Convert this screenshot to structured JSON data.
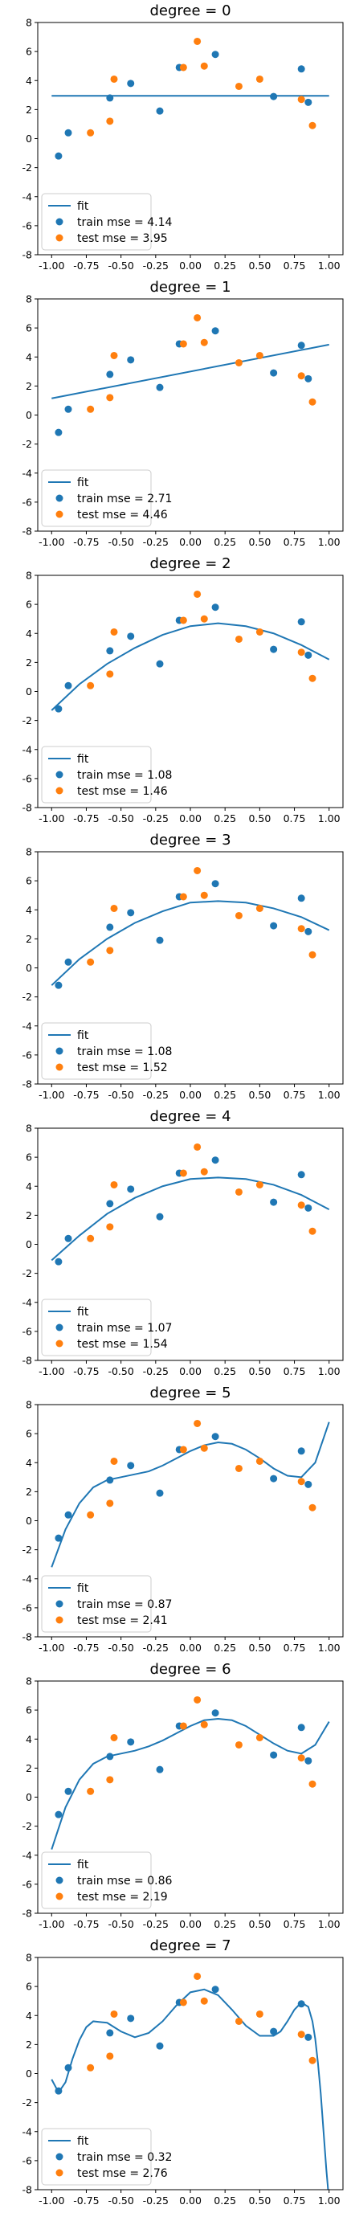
{
  "chart_data": [
    {
      "type": "scatter",
      "title": "degree = 0",
      "xlim": [
        -1.1,
        1.1
      ],
      "ylim": [
        -8,
        8
      ],
      "xticks": [
        "-1.00",
        "-0.75",
        "-0.50",
        "-0.25",
        "0.00",
        "0.25",
        "0.50",
        "0.75",
        "1.00"
      ],
      "yticks": [
        "-8",
        "-6",
        "-4",
        "-2",
        "0",
        "2",
        "4",
        "6",
        "8"
      ],
      "legend": {
        "placement": "lower-left",
        "fit_label": "fit",
        "train_label": "train mse = 4.14",
        "test_label": "test mse = 3.95"
      },
      "fit": {
        "x": [
          -1.0,
          1.0
        ],
        "y": [
          2.95,
          2.95
        ]
      }
    },
    {
      "type": "scatter",
      "title": "degree = 1",
      "xlim": [
        -1.1,
        1.1
      ],
      "ylim": [
        -8,
        8
      ],
      "xticks": [
        "-1.00",
        "-0.75",
        "-0.50",
        "-0.25",
        "0.00",
        "0.25",
        "0.50",
        "0.75",
        "1.00"
      ],
      "yticks": [
        "-8",
        "-6",
        "-4",
        "-2",
        "0",
        "2",
        "4",
        "6",
        "8"
      ],
      "legend": {
        "placement": "lower-left",
        "fit_label": "fit",
        "train_label": "train mse = 2.71",
        "test_label": "test mse = 4.46"
      },
      "fit": {
        "x": [
          -1.0,
          1.0
        ],
        "y": [
          1.15,
          4.85
        ]
      }
    },
    {
      "type": "scatter",
      "title": "degree = 2",
      "xlim": [
        -1.1,
        1.1
      ],
      "ylim": [
        -8,
        8
      ],
      "xticks": [
        "-1.00",
        "-0.75",
        "-0.50",
        "-0.25",
        "0.00",
        "0.25",
        "0.50",
        "0.75",
        "1.00"
      ],
      "yticks": [
        "-8",
        "-6",
        "-4",
        "-2",
        "0",
        "2",
        "4",
        "6",
        "8"
      ],
      "legend": {
        "placement": "lower-left",
        "fit_label": "fit",
        "train_label": "train mse = 1.08",
        "test_label": "test mse = 1.46"
      },
      "fit": {
        "x": [
          -1.0,
          -0.8,
          -0.6,
          -0.4,
          -0.2,
          0.0,
          0.2,
          0.4,
          0.6,
          0.8,
          1.0
        ],
        "y": [
          -1.3,
          0.5,
          1.9,
          3.0,
          3.9,
          4.5,
          4.7,
          4.5,
          4.0,
          3.2,
          2.2
        ]
      }
    },
    {
      "type": "scatter",
      "title": "degree = 3",
      "xlim": [
        -1.1,
        1.1
      ],
      "ylim": [
        -8,
        8
      ],
      "xticks": [
        "-1.00",
        "-0.75",
        "-0.50",
        "-0.25",
        "0.00",
        "0.25",
        "0.50",
        "0.75",
        "1.00"
      ],
      "yticks": [
        "-8",
        "-6",
        "-4",
        "-2",
        "0",
        "2",
        "4",
        "6",
        "8"
      ],
      "legend": {
        "placement": "lower-left",
        "fit_label": "fit",
        "train_label": "train mse = 1.08",
        "test_label": "test mse = 1.52"
      },
      "fit": {
        "x": [
          -1.0,
          -0.8,
          -0.6,
          -0.4,
          -0.2,
          0.0,
          0.2,
          0.4,
          0.6,
          0.8,
          1.0
        ],
        "y": [
          -1.2,
          0.6,
          2.0,
          3.1,
          3.9,
          4.5,
          4.6,
          4.5,
          4.1,
          3.5,
          2.6
        ]
      }
    },
    {
      "type": "scatter",
      "title": "degree = 4",
      "xlim": [
        -1.1,
        1.1
      ],
      "ylim": [
        -8,
        8
      ],
      "xticks": [
        "-1.00",
        "-0.75",
        "-0.50",
        "-0.25",
        "0.00",
        "0.25",
        "0.50",
        "0.75",
        "1.00"
      ],
      "yticks": [
        "-8",
        "-6",
        "-4",
        "-2",
        "0",
        "2",
        "4",
        "6",
        "8"
      ],
      "legend": {
        "placement": "lower-left",
        "fit_label": "fit",
        "train_label": "train mse = 1.07",
        "test_label": "test mse = 1.54"
      },
      "fit": {
        "x": [
          -1.0,
          -0.8,
          -0.6,
          -0.4,
          -0.2,
          0.0,
          0.2,
          0.4,
          0.6,
          0.8,
          1.0
        ],
        "y": [
          -1.1,
          0.6,
          2.1,
          3.2,
          4.0,
          4.5,
          4.6,
          4.5,
          4.1,
          3.4,
          2.4
        ]
      }
    },
    {
      "type": "scatter",
      "title": "degree = 5",
      "xlim": [
        -1.1,
        1.1
      ],
      "ylim": [
        -8,
        8
      ],
      "xticks": [
        "-1.00",
        "-0.75",
        "-0.50",
        "-0.25",
        "0.00",
        "0.25",
        "0.50",
        "0.75",
        "1.00"
      ],
      "yticks": [
        "-8",
        "-6",
        "-4",
        "-2",
        "0",
        "2",
        "4",
        "6",
        "8"
      ],
      "legend": {
        "placement": "lower-left",
        "fit_label": "fit",
        "train_label": "train mse = 0.87",
        "test_label": "test mse = 2.41"
      },
      "fit": {
        "x": [
          -1.0,
          -0.9,
          -0.8,
          -0.7,
          -0.6,
          -0.5,
          -0.4,
          -0.3,
          -0.2,
          -0.1,
          0.0,
          0.1,
          0.2,
          0.3,
          0.4,
          0.5,
          0.6,
          0.7,
          0.8,
          0.9,
          1.0
        ],
        "y": [
          -3.2,
          -0.6,
          1.2,
          2.3,
          2.8,
          3.0,
          3.2,
          3.4,
          3.8,
          4.3,
          4.8,
          5.2,
          5.4,
          5.3,
          4.9,
          4.3,
          3.6,
          3.1,
          3.0,
          4.0,
          6.8
        ]
      }
    },
    {
      "type": "scatter",
      "title": "degree = 6",
      "xlim": [
        -1.1,
        1.1
      ],
      "ylim": [
        -8,
        8
      ],
      "xticks": [
        "-1.00",
        "-0.75",
        "-0.50",
        "-0.25",
        "0.00",
        "0.25",
        "0.50",
        "0.75",
        "1.00"
      ],
      "yticks": [
        "-8",
        "-6",
        "-4",
        "-2",
        "0",
        "2",
        "4",
        "6",
        "8"
      ],
      "legend": {
        "placement": "lower-left",
        "fit_label": "fit",
        "train_label": "train mse = 0.86",
        "test_label": "test mse = 2.19"
      },
      "fit": {
        "x": [
          -1.0,
          -0.9,
          -0.8,
          -0.7,
          -0.6,
          -0.5,
          -0.4,
          -0.3,
          -0.2,
          -0.1,
          0.0,
          0.1,
          0.2,
          0.3,
          0.4,
          0.5,
          0.6,
          0.7,
          0.8,
          0.9,
          1.0
        ],
        "y": [
          -3.6,
          -0.7,
          1.2,
          2.3,
          2.8,
          3.0,
          3.2,
          3.5,
          3.9,
          4.4,
          4.9,
          5.3,
          5.4,
          5.3,
          4.9,
          4.3,
          3.7,
          3.2,
          3.0,
          3.6,
          5.2
        ]
      }
    },
    {
      "type": "scatter",
      "title": "degree = 7",
      "xlim": [
        -1.1,
        1.1
      ],
      "ylim": [
        -8,
        8
      ],
      "xticks": [
        "-1.00",
        "-0.75",
        "-0.50",
        "-0.25",
        "0.00",
        "0.25",
        "0.50",
        "0.75",
        "1.00"
      ],
      "yticks": [
        "-8",
        "-6",
        "-4",
        "-2",
        "0",
        "2",
        "4",
        "6",
        "8"
      ],
      "legend": {
        "placement": "lower-left",
        "fit_label": "fit",
        "train_label": "train mse = 0.32",
        "test_label": "test mse = 2.76"
      },
      "fit": {
        "x": [
          -1.0,
          -0.95,
          -0.9,
          -0.85,
          -0.8,
          -0.75,
          -0.7,
          -0.6,
          -0.5,
          -0.4,
          -0.3,
          -0.2,
          -0.1,
          0.0,
          0.1,
          0.2,
          0.3,
          0.4,
          0.5,
          0.6,
          0.65,
          0.7,
          0.75,
          0.8,
          0.85,
          0.88,
          0.9,
          0.92,
          0.94,
          0.96,
          0.98,
          1.0
        ],
        "y": [
          -0.4,
          -1.3,
          -0.6,
          1.0,
          2.3,
          3.2,
          3.6,
          3.5,
          2.9,
          2.5,
          2.8,
          3.6,
          4.7,
          5.6,
          5.8,
          5.4,
          4.4,
          3.3,
          2.6,
          2.6,
          2.9,
          3.6,
          4.4,
          4.9,
          4.6,
          3.6,
          2.4,
          0.7,
          -1.4,
          -4.0,
          -6.6,
          -8.8
        ]
      }
    }
  ],
  "shared_points": {
    "train": {
      "name": "train",
      "color": "#1f77b4",
      "x": [
        -0.95,
        -0.88,
        -0.58,
        -0.43,
        -0.22,
        -0.08,
        0.18,
        0.6,
        0.8,
        0.85
      ],
      "y": [
        -1.2,
        0.4,
        2.8,
        3.8,
        1.9,
        4.9,
        5.8,
        2.9,
        4.8,
        2.5
      ]
    },
    "test": {
      "name": "test",
      "color": "#ff7f0e",
      "x": [
        -0.72,
        -0.58,
        -0.55,
        -0.05,
        0.05,
        0.1,
        0.35,
        0.5,
        0.8,
        0.88
      ],
      "y": [
        0.4,
        1.2,
        4.1,
        4.9,
        6.7,
        5.0,
        3.6,
        4.1,
        2.7,
        0.9
      ]
    }
  },
  "colors": {
    "fit": "#1f77b4",
    "train": "#1f77b4",
    "test": "#ff7f0e",
    "frame": "#000000"
  }
}
